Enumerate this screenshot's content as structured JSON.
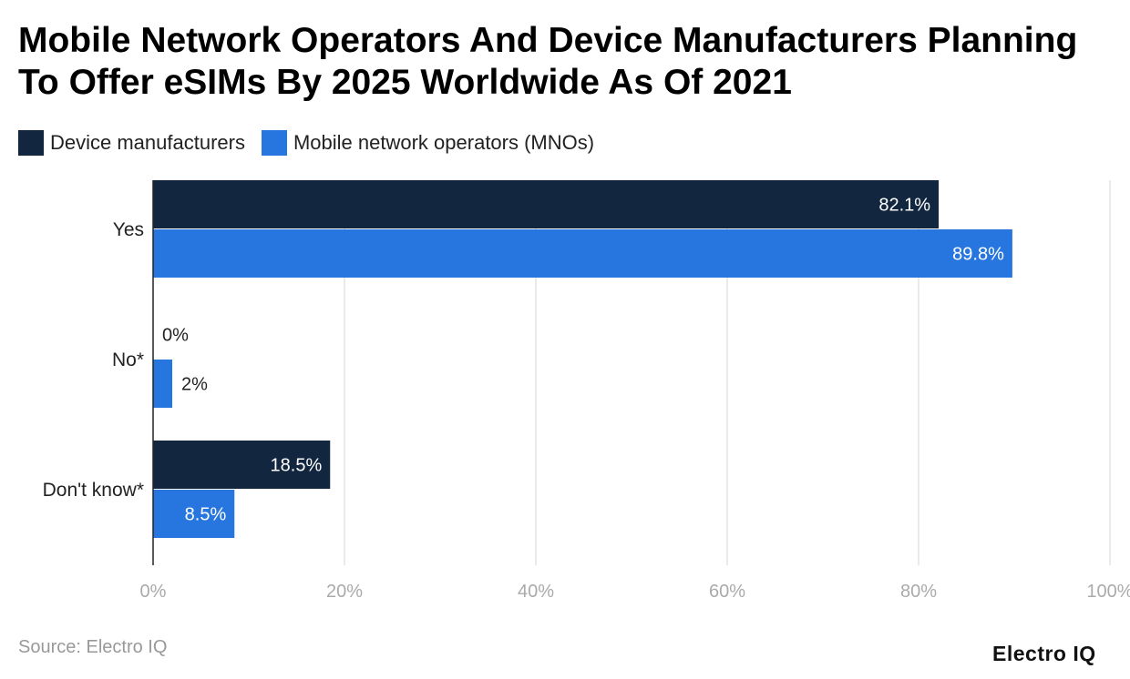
{
  "chart_data": {
    "type": "bar",
    "orientation": "horizontal",
    "title": "Mobile Network Operators And Device Manufacturers Planning To Offer eSIMs By 2025 Worldwide As Of 2021",
    "categories": [
      "Yes",
      "No*",
      "Don't know*"
    ],
    "series": [
      {
        "name": "Device manufacturers",
        "color": "#12263f",
        "values": [
          82.1,
          0,
          18.5
        ],
        "labels": [
          "82.1%",
          "0%",
          "18.5%"
        ]
      },
      {
        "name": "Mobile network operators (MNOs)",
        "color": "#2776e0",
        "values": [
          89.8,
          2,
          8.5
        ],
        "labels": [
          "89.8%",
          "2%",
          "8.5%"
        ]
      }
    ],
    "xlim": [
      0,
      100
    ],
    "xticks": [
      "0%",
      "20%",
      "40%",
      "60%",
      "80%",
      "100%"
    ],
    "grid": true,
    "legend": "top-left"
  },
  "source": "Source: Electro IQ",
  "logo": "Electro IQ"
}
